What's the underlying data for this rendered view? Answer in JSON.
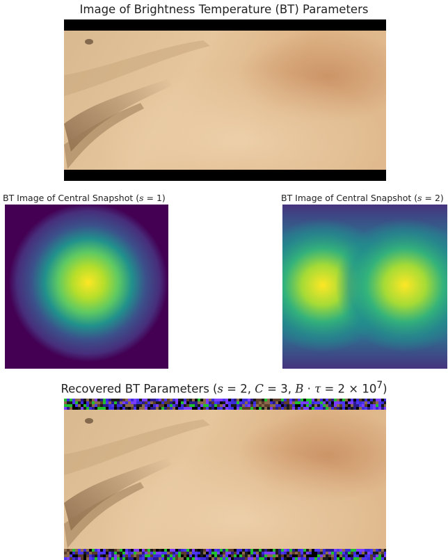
{
  "figure": {
    "top_title": "Image of Brightness Temperature (BT) Parameters",
    "left_title_prefix": "BT Image of Central Snapshot (",
    "left_title_var": "s",
    "left_title_suffix": " = 1)",
    "right_title_prefix": "BT Image of Central Snapshot (",
    "right_title_var": "s",
    "right_title_suffix": " = 2)",
    "bottom_title_prefix": "Recovered BT Parameters (",
    "bottom_title_s": "s",
    "bottom_title_s_val": " = 2, ",
    "bottom_title_c": "C",
    "bottom_title_c_val": " = 3, ",
    "bottom_title_b": "B",
    "bottom_title_dot": " · ",
    "bottom_title_tau": "τ",
    "bottom_title_val": " = 2 × 10",
    "bottom_title_exp": "7",
    "bottom_title_suffix": ")"
  },
  "colors": {
    "desert_light": "#e8c79c",
    "desert_mid": "#d9b081",
    "desert_dark": "#9c7a55",
    "viridis_low": "#440154",
    "viridis_high": "#fde725",
    "bar_black": "#000000"
  }
}
